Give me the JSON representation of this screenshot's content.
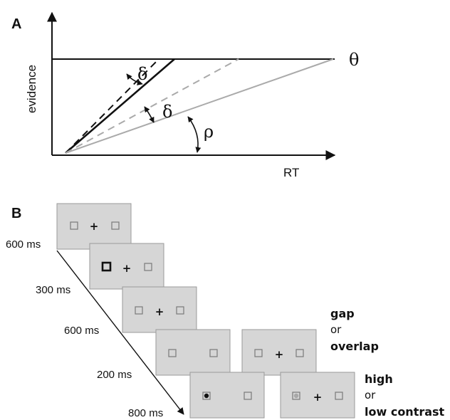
{
  "panel_a": {
    "label": "A",
    "y_axis_label": "evidence",
    "x_axis_label": "RT",
    "threshold_symbol": "θ",
    "delta_symbol_1": "δ",
    "delta_symbol_2": "δ",
    "rho_symbol": "ρ",
    "colors": {
      "black": "#111111",
      "gray": "#aaaaaa"
    }
  },
  "panel_b": {
    "label": "B",
    "timings": [
      "600 ms",
      "300 ms",
      "600 ms",
      "200 ms",
      "800 ms"
    ],
    "condition_1": {
      "line1": "gap",
      "line2": "or",
      "line3": "overlap"
    },
    "condition_2": {
      "line1": "high",
      "line2": "or",
      "line3": "low contrast"
    },
    "fixation_symbol": "+",
    "colors": {
      "screen": "#d6d6d6",
      "placeholder": "#7a7a7a"
    }
  }
}
